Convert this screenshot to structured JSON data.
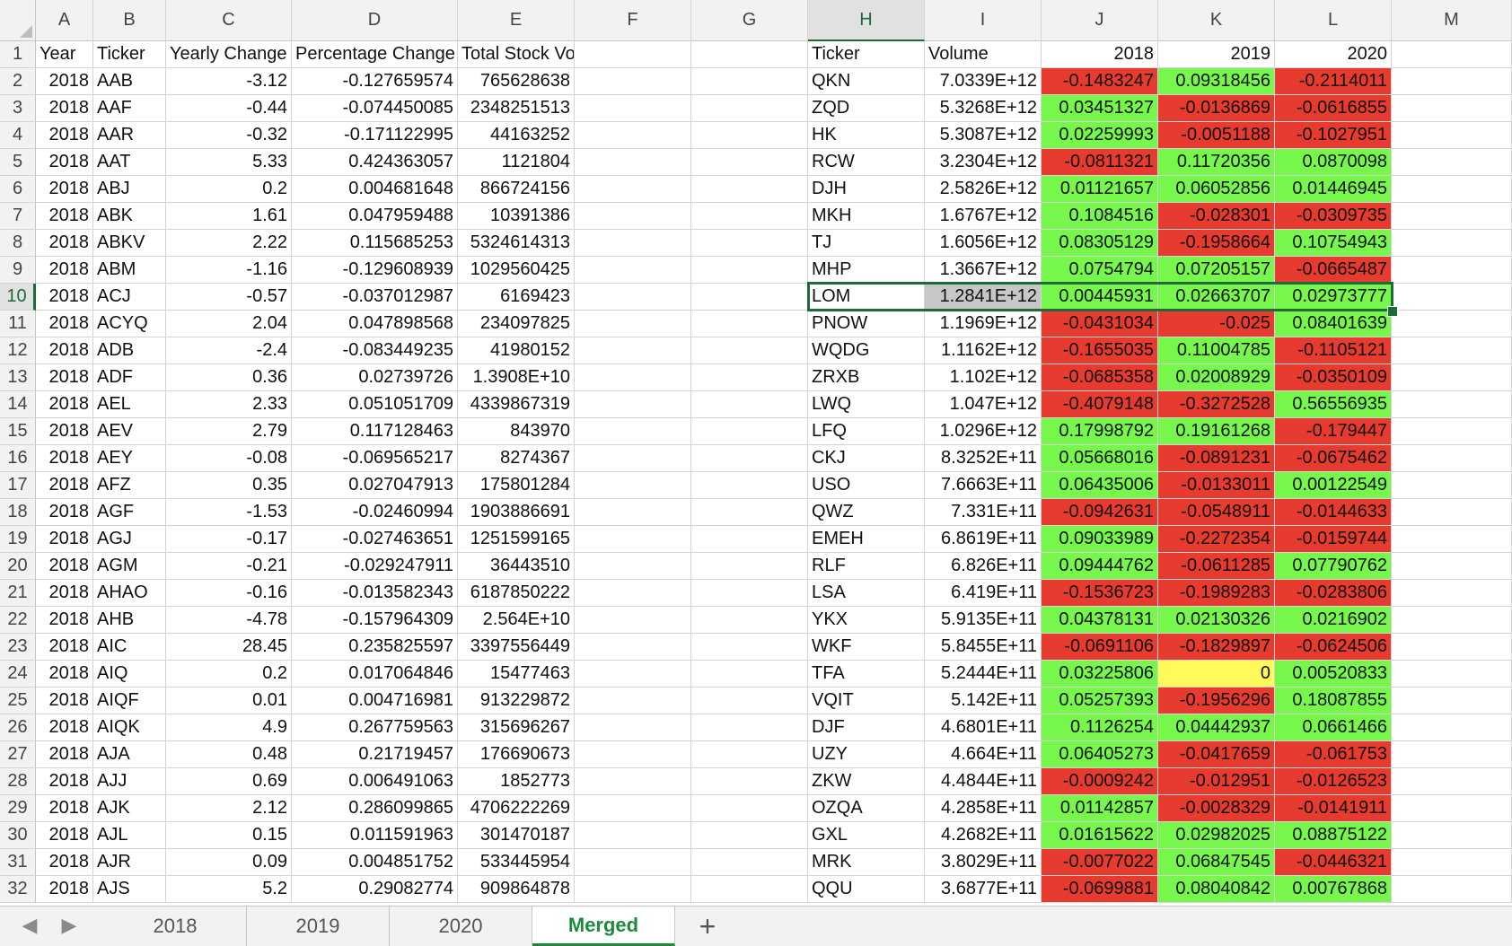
{
  "column_headers": [
    "A",
    "B",
    "C",
    "D",
    "E",
    "F",
    "G",
    "H",
    "I",
    "J",
    "K",
    "L",
    "M"
  ],
  "row_numbers": [
    "1",
    "2",
    "3",
    "4",
    "5",
    "6",
    "7",
    "8",
    "9",
    "10",
    "11",
    "12",
    "13",
    "14",
    "15",
    "16",
    "17",
    "18",
    "19",
    "20",
    "21",
    "22",
    "23",
    "24",
    "25",
    "26",
    "27",
    "28",
    "29",
    "30",
    "31",
    "32"
  ],
  "selection": {
    "active_row": "10",
    "active_column": "H"
  },
  "left_table": {
    "headers": [
      "Year",
      "Ticker",
      "Yearly Change",
      "Percentage Change",
      "Total Stock Volume"
    ],
    "rows": [
      [
        "2018",
        "AAB",
        "-3.12",
        "-0.127659574",
        "765628638"
      ],
      [
        "2018",
        "AAF",
        "-0.44",
        "-0.074450085",
        "2348251513"
      ],
      [
        "2018",
        "AAR",
        "-0.32",
        "-0.171122995",
        "44163252"
      ],
      [
        "2018",
        "AAT",
        "5.33",
        "0.424363057",
        "1121804"
      ],
      [
        "2018",
        "ABJ",
        "0.2",
        "0.004681648",
        "866724156"
      ],
      [
        "2018",
        "ABK",
        "1.61",
        "0.047959488",
        "10391386"
      ],
      [
        "2018",
        "ABKV",
        "2.22",
        "0.115685253",
        "5324614313"
      ],
      [
        "2018",
        "ABM",
        "-1.16",
        "-0.129608939",
        "1029560425"
      ],
      [
        "2018",
        "ACJ",
        "-0.57",
        "-0.037012987",
        "6169423"
      ],
      [
        "2018",
        "ACYQ",
        "2.04",
        "0.047898568",
        "234097825"
      ],
      [
        "2018",
        "ADB",
        "-2.4",
        "-0.083449235",
        "41980152"
      ],
      [
        "2018",
        "ADF",
        "0.36",
        "0.02739726",
        "1.3908E+10"
      ],
      [
        "2018",
        "AEL",
        "2.33",
        "0.051051709",
        "4339867319"
      ],
      [
        "2018",
        "AEV",
        "2.79",
        "0.117128463",
        "843970"
      ],
      [
        "2018",
        "AEY",
        "-0.08",
        "-0.069565217",
        "8274367"
      ],
      [
        "2018",
        "AFZ",
        "0.35",
        "0.027047913",
        "175801284"
      ],
      [
        "2018",
        "AGF",
        "-1.53",
        "-0.02460994",
        "1903886691"
      ],
      [
        "2018",
        "AGJ",
        "-0.17",
        "-0.027463651",
        "1251599165"
      ],
      [
        "2018",
        "AGM",
        "-0.21",
        "-0.029247911",
        "36443510"
      ],
      [
        "2018",
        "AHAO",
        "-0.16",
        "-0.013582343",
        "6187850222"
      ],
      [
        "2018",
        "AHB",
        "-4.78",
        "-0.157964309",
        "2.564E+10"
      ],
      [
        "2018",
        "AIC",
        "28.45",
        "0.235825597",
        "3397556449"
      ],
      [
        "2018",
        "AIQ",
        "0.2",
        "0.017064846",
        "15477463"
      ],
      [
        "2018",
        "AIQF",
        "0.01",
        "0.004716981",
        "913229872"
      ],
      [
        "2018",
        "AIQK",
        "4.9",
        "0.267759563",
        "315696267"
      ],
      [
        "2018",
        "AJA",
        "0.48",
        "0.21719457",
        "176690673"
      ],
      [
        "2018",
        "AJJ",
        "0.69",
        "0.006491063",
        "1852773"
      ],
      [
        "2018",
        "AJK",
        "2.12",
        "0.286099865",
        "4706222269"
      ],
      [
        "2018",
        "AJL",
        "0.15",
        "0.011591963",
        "301470187"
      ],
      [
        "2018",
        "AJR",
        "0.09",
        "0.004851752",
        "533445954"
      ],
      [
        "2018",
        "AJS",
        "5.2",
        "0.29082774",
        "909864878"
      ]
    ]
  },
  "right_table": {
    "headers": [
      "Ticker",
      "Volume",
      "2018",
      "2019",
      "2020"
    ],
    "colors": {
      "red": "#e63b2e",
      "green": "#77f74c",
      "yellow": "#fdfa5a",
      "gray": "#c7c7c7"
    },
    "rows": [
      {
        "ticker": "QKN",
        "volume": "7.0339E+12",
        "v2018": "-0.1483247",
        "v2019": "0.09318456",
        "v2020": "-0.2114011",
        "c": [
          "red",
          "green",
          "red"
        ]
      },
      {
        "ticker": "ZQD",
        "volume": "5.3268E+12",
        "v2018": "0.03451327",
        "v2019": "-0.0136869",
        "v2020": "-0.0616855",
        "c": [
          "green",
          "red",
          "red"
        ]
      },
      {
        "ticker": "HK",
        "volume": "5.3087E+12",
        "v2018": "0.02259993",
        "v2019": "-0.0051188",
        "v2020": "-0.1027951",
        "c": [
          "green",
          "red",
          "red"
        ]
      },
      {
        "ticker": "RCW",
        "volume": "3.2304E+12",
        "v2018": "-0.0811321",
        "v2019": "0.11720356",
        "v2020": "0.0870098",
        "c": [
          "red",
          "green",
          "green"
        ]
      },
      {
        "ticker": "DJH",
        "volume": "2.5826E+12",
        "v2018": "0.01121657",
        "v2019": "0.06052856",
        "v2020": "0.01446945",
        "c": [
          "green",
          "green",
          "green"
        ]
      },
      {
        "ticker": "MKH",
        "volume": "1.6767E+12",
        "v2018": "0.1084516",
        "v2019": "-0.028301",
        "v2020": "-0.0309735",
        "c": [
          "green",
          "red",
          "red"
        ]
      },
      {
        "ticker": "TJ",
        "volume": "1.6056E+12",
        "v2018": "0.08305129",
        "v2019": "-0.1958664",
        "v2020": "0.10754943",
        "c": [
          "green",
          "red",
          "green"
        ]
      },
      {
        "ticker": "MHP",
        "volume": "1.3667E+12",
        "v2018": "0.0754794",
        "v2019": "0.07205157",
        "v2020": "-0.0665487",
        "c": [
          "green",
          "green",
          "red"
        ]
      },
      {
        "ticker": "LOM",
        "volume": "1.2841E+12",
        "v2018": "0.00445931",
        "v2019": "0.02663707",
        "v2020": "0.02973777",
        "c": [
          "green",
          "green",
          "green"
        ],
        "selected": true
      },
      {
        "ticker": "PNOW",
        "volume": "1.1969E+12",
        "v2018": "-0.0431034",
        "v2019": "-0.025",
        "v2020": "0.08401639",
        "c": [
          "red",
          "red",
          "green"
        ]
      },
      {
        "ticker": "WQDG",
        "volume": "1.1162E+12",
        "v2018": "-0.1655035",
        "v2019": "0.11004785",
        "v2020": "-0.1105121",
        "c": [
          "red",
          "green",
          "red"
        ]
      },
      {
        "ticker": "ZRXB",
        "volume": "1.102E+12",
        "v2018": "-0.0685358",
        "v2019": "0.02008929",
        "v2020": "-0.0350109",
        "c": [
          "red",
          "green",
          "red"
        ]
      },
      {
        "ticker": "LWQ",
        "volume": "1.047E+12",
        "v2018": "-0.4079148",
        "v2019": "-0.3272528",
        "v2020": "0.56556935",
        "c": [
          "red",
          "red",
          "green"
        ]
      },
      {
        "ticker": "LFQ",
        "volume": "1.0296E+12",
        "v2018": "0.17998792",
        "v2019": "0.19161268",
        "v2020": "-0.179447",
        "c": [
          "green",
          "green",
          "red"
        ]
      },
      {
        "ticker": "CKJ",
        "volume": "8.3252E+11",
        "v2018": "0.05668016",
        "v2019": "-0.0891231",
        "v2020": "-0.0675462",
        "c": [
          "green",
          "red",
          "red"
        ]
      },
      {
        "ticker": "USO",
        "volume": "7.6663E+11",
        "v2018": "0.06435006",
        "v2019": "-0.0133011",
        "v2020": "0.00122549",
        "c": [
          "green",
          "red",
          "green"
        ]
      },
      {
        "ticker": "QWZ",
        "volume": "7.331E+11",
        "v2018": "-0.0942631",
        "v2019": "-0.0548911",
        "v2020": "-0.0144633",
        "c": [
          "red",
          "red",
          "red"
        ]
      },
      {
        "ticker": "EMEH",
        "volume": "6.8619E+11",
        "v2018": "0.09033989",
        "v2019": "-0.2272354",
        "v2020": "-0.0159744",
        "c": [
          "green",
          "red",
          "red"
        ]
      },
      {
        "ticker": "RLF",
        "volume": "6.826E+11",
        "v2018": "0.09444762",
        "v2019": "-0.0611285",
        "v2020": "0.07790762",
        "c": [
          "green",
          "red",
          "green"
        ]
      },
      {
        "ticker": "LSA",
        "volume": "6.419E+11",
        "v2018": "-0.1536723",
        "v2019": "-0.1989283",
        "v2020": "-0.0283806",
        "c": [
          "red",
          "red",
          "red"
        ]
      },
      {
        "ticker": "YKX",
        "volume": "5.9135E+11",
        "v2018": "0.04378131",
        "v2019": "0.02130326",
        "v2020": "0.0216902",
        "c": [
          "green",
          "green",
          "green"
        ]
      },
      {
        "ticker": "WKF",
        "volume": "5.8455E+11",
        "v2018": "-0.0691106",
        "v2019": "-0.1829897",
        "v2020": "-0.0624506",
        "c": [
          "red",
          "red",
          "red"
        ]
      },
      {
        "ticker": "TFA",
        "volume": "5.2444E+11",
        "v2018": "0.03225806",
        "v2019": "0",
        "v2020": "0.00520833",
        "c": [
          "green",
          "yellow",
          "green"
        ]
      },
      {
        "ticker": "VQIT",
        "volume": "5.142E+11",
        "v2018": "0.05257393",
        "v2019": "-0.1956296",
        "v2020": "0.18087855",
        "c": [
          "green",
          "red",
          "green"
        ]
      },
      {
        "ticker": "DJF",
        "volume": "4.6801E+11",
        "v2018": "0.1126254",
        "v2019": "0.04442937",
        "v2020": "0.0661466",
        "c": [
          "green",
          "green",
          "green"
        ]
      },
      {
        "ticker": "UZY",
        "volume": "4.664E+11",
        "v2018": "0.06405273",
        "v2019": "-0.0417659",
        "v2020": "-0.061753",
        "c": [
          "green",
          "red",
          "red"
        ]
      },
      {
        "ticker": "ZKW",
        "volume": "4.4844E+11",
        "v2018": "-0.0009242",
        "v2019": "-0.012951",
        "v2020": "-0.0126523",
        "c": [
          "red",
          "red",
          "red"
        ]
      },
      {
        "ticker": "OZQA",
        "volume": "4.2858E+11",
        "v2018": "0.01142857",
        "v2019": "-0.0028329",
        "v2020": "-0.0141911",
        "c": [
          "green",
          "red",
          "red"
        ]
      },
      {
        "ticker": "GXL",
        "volume": "4.2682E+11",
        "v2018": "0.01615622",
        "v2019": "0.02982025",
        "v2020": "0.08875122",
        "c": [
          "green",
          "green",
          "green"
        ]
      },
      {
        "ticker": "MRK",
        "volume": "3.8029E+11",
        "v2018": "-0.0077022",
        "v2019": "0.06847545",
        "v2020": "-0.0446321",
        "c": [
          "red",
          "green",
          "red"
        ]
      },
      {
        "ticker": "QQU",
        "volume": "3.6877E+11",
        "v2018": "-0.0699881",
        "v2019": "0.08040842",
        "v2020": "0.00767868",
        "c": [
          "red",
          "green",
          "green"
        ]
      }
    ]
  },
  "sheet_tabs": [
    {
      "label": "2018",
      "active": false
    },
    {
      "label": "2019",
      "active": false
    },
    {
      "label": "2020",
      "active": false
    },
    {
      "label": "Merged",
      "active": true
    }
  ],
  "icons": {
    "prev_sheet": "chevron-left-icon",
    "next_sheet": "chevron-right-icon",
    "add_sheet": "plus-icon"
  },
  "nav": {
    "prev": "◀",
    "next": "▶",
    "add": "+"
  }
}
